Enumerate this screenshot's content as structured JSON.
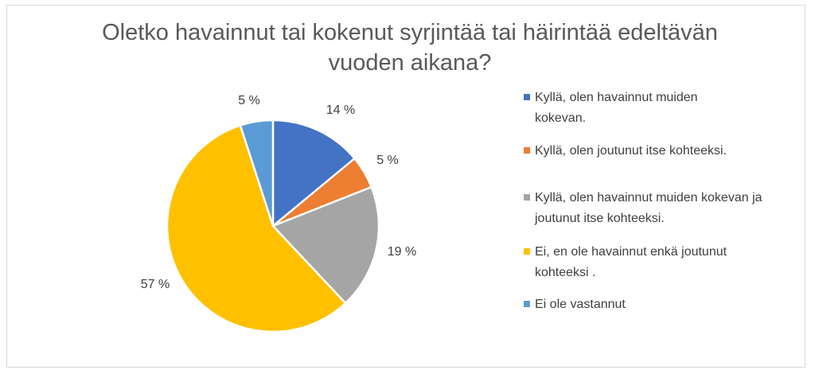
{
  "chart_data": {
    "type": "pie",
    "title": "Oletko havainnut tai kokenut syrjintää tai häirintää edeltävän vuoden aikana?",
    "categories": [
      "Kyllä, olen havainnut muiden kokevan.",
      "Kyllä, olen joutunut itse kohteeksi.",
      "Kyllä, olen havainnut muiden kokevan ja joutunut itse kohteeksi.",
      "Ei, en ole havainnut enkä joutunut kohteeksi .",
      "Ei ole vastannut"
    ],
    "values": [
      14,
      5,
      19,
      57,
      5
    ],
    "data_labels": [
      "14 %",
      "5 %",
      "19 %",
      "57 %",
      "5 %"
    ],
    "colors": [
      "#4472c4",
      "#ed7d31",
      "#a5a5a5",
      "#ffc000",
      "#5b9bd5"
    ],
    "legend_position": "right"
  }
}
